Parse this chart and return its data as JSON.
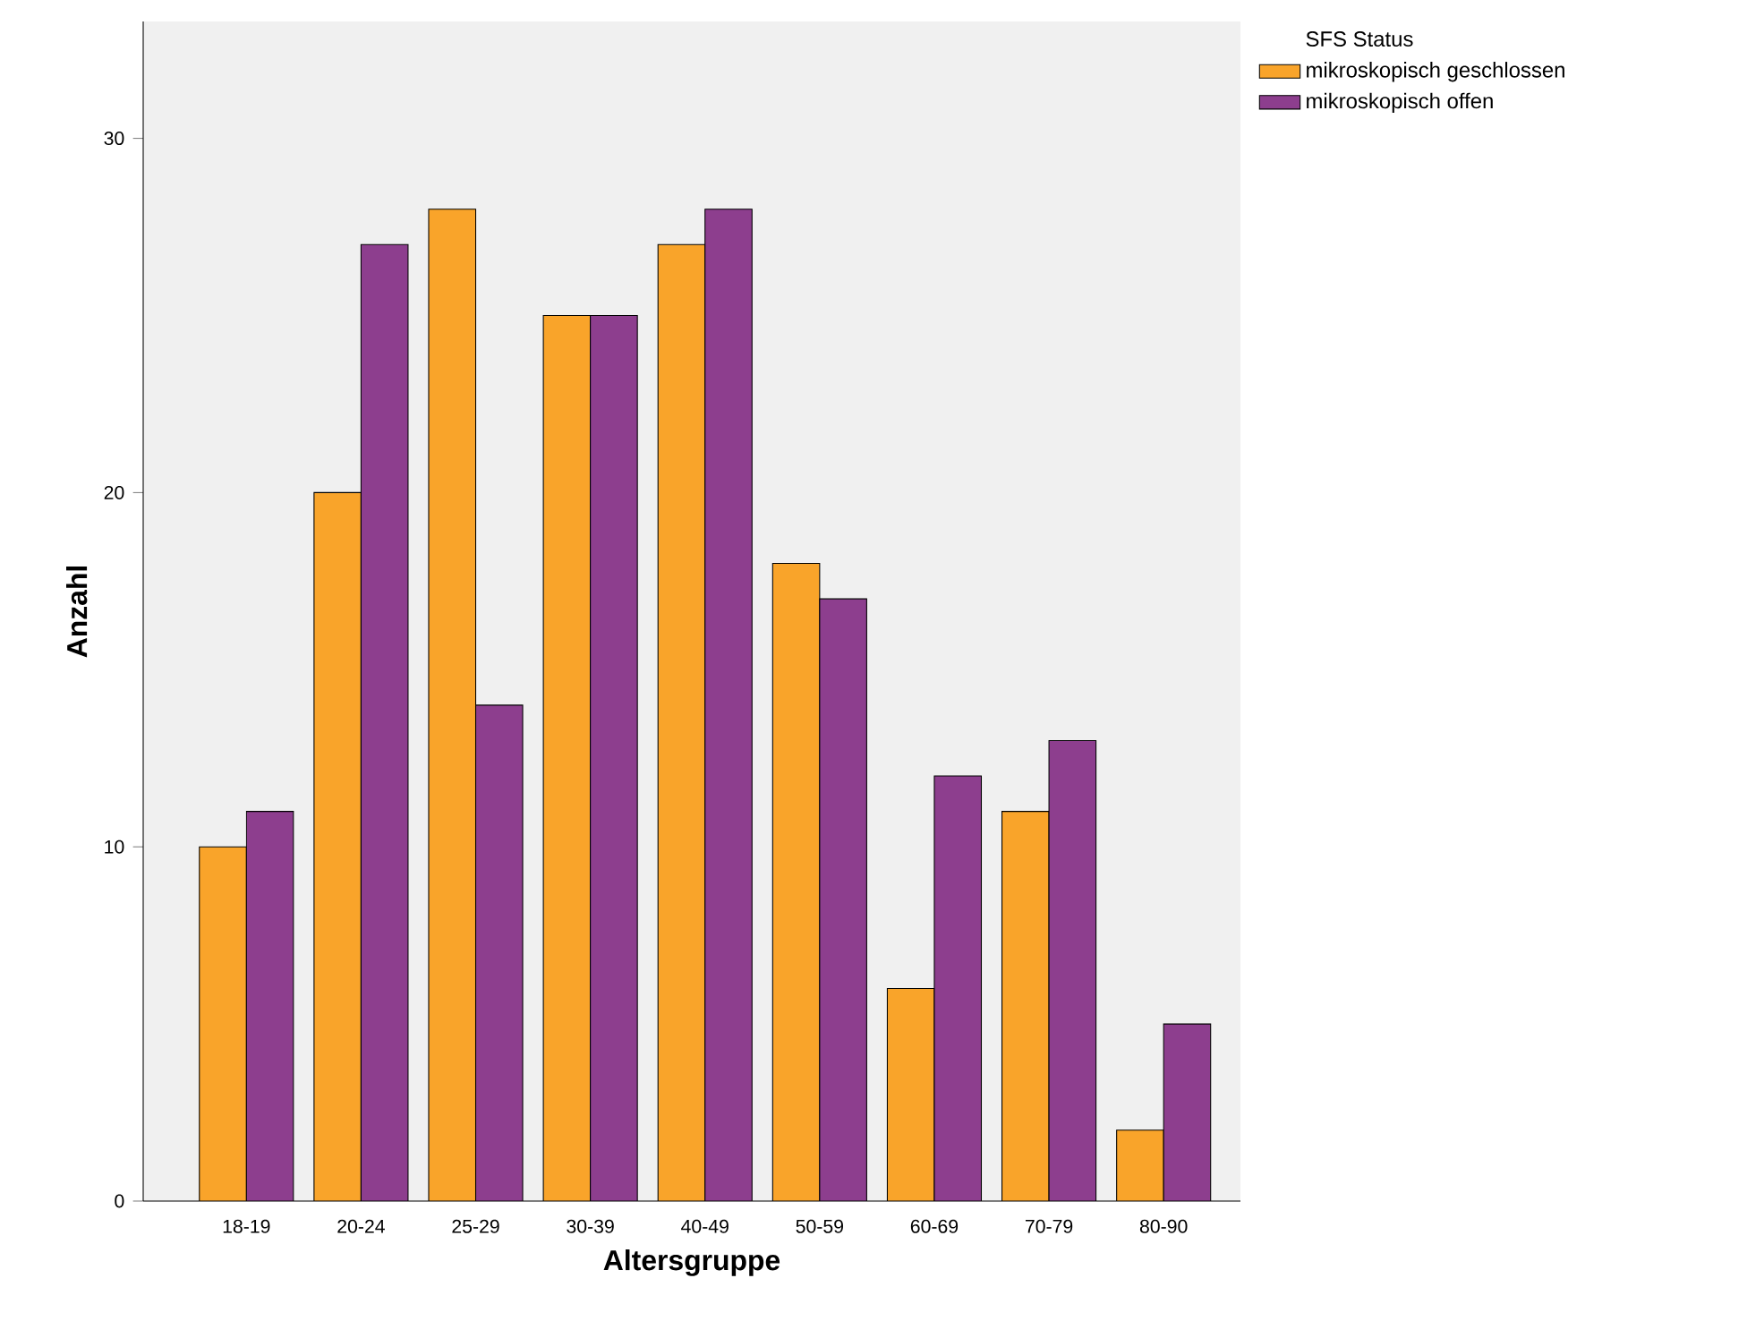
{
  "chart_data": {
    "type": "bar",
    "xlabel": "Altersgruppe",
    "ylabel": "Anzahl",
    "legend_title": "SFS Status",
    "legend": "top right",
    "categories": [
      "18-19",
      "20-24",
      "25-29",
      "30-39",
      "40-49",
      "50-59",
      "60-69",
      "70-79",
      "80-90"
    ],
    "series": [
      {
        "name": "mikroskopisch geschlossen",
        "color": "#f9a42a",
        "values": [
          10,
          20,
          28,
          25,
          27,
          18,
          6,
          11,
          2
        ]
      },
      {
        "name": "mikroskopisch offen",
        "color": "#8d3e8e",
        "values": [
          11,
          27,
          14,
          25,
          28,
          17,
          12,
          13,
          5
        ]
      }
    ],
    "ylim": [
      0,
      33.3
    ],
    "yticks": [
      0,
      10,
      20,
      30
    ]
  }
}
